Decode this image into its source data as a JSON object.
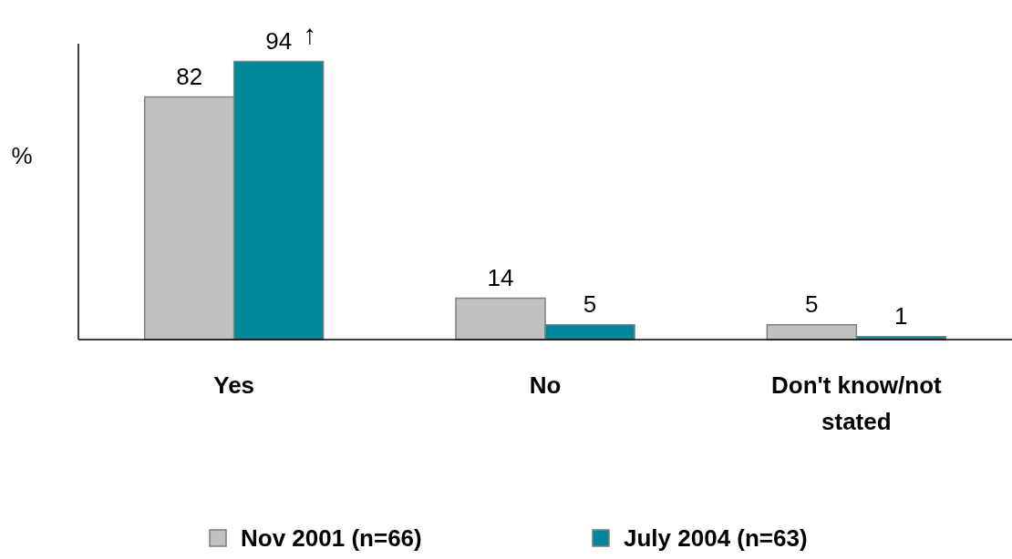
{
  "chart_data": {
    "type": "bar",
    "ylabel": "%",
    "categories": [
      "Yes",
      "No",
      "Don't know/not stated"
    ],
    "series": [
      {
        "name": "Nov 2001 (n=66)",
        "color": "#c0c0c0",
        "values": [
          82,
          14,
          5
        ]
      },
      {
        "name": "July 2004 (n=63)",
        "color": "#00889a",
        "values": [
          94,
          5,
          1
        ]
      }
    ],
    "ylim": [
      0,
      100
    ],
    "data_labels": true,
    "legend": "bottom",
    "annotations": [
      {
        "text": "↑",
        "x": "Yes",
        "y": 94
      }
    ]
  }
}
